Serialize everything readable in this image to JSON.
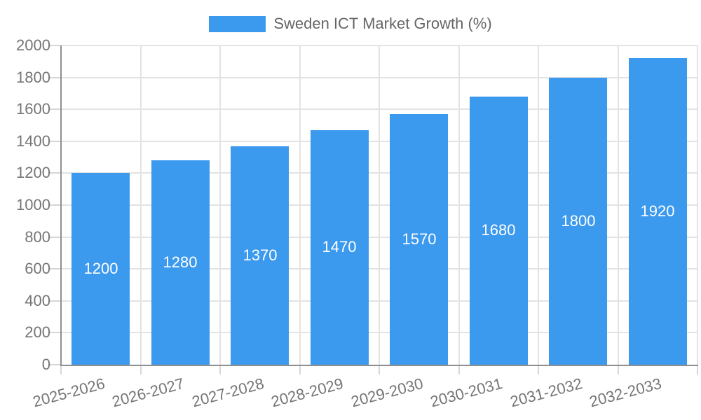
{
  "chart_data": {
    "type": "bar",
    "title": "",
    "legend": "Sweden ICT Market Growth (%)",
    "legend_position": "top",
    "categories": [
      "2025-2026",
      "2026-2027",
      "2027-2028",
      "2028-2029",
      "2029-2030",
      "2030-2031",
      "2031-2032",
      "2032-2033"
    ],
    "values": [
      1200,
      1280,
      1370,
      1470,
      1570,
      1680,
      1800,
      1920
    ],
    "value_labels": [
      "1200",
      "1280",
      "1370",
      "1470",
      "1570",
      "1680",
      "1800",
      "1920"
    ],
    "xlabel": "",
    "ylabel": "",
    "ylim": [
      0,
      2000
    ],
    "ytick_step": 200,
    "yticks": [
      0,
      200,
      400,
      600,
      800,
      1000,
      1200,
      1400,
      1600,
      1800,
      2000
    ],
    "grid": true,
    "x_label_rotation_deg": -15,
    "colors": {
      "bar": "#3B99EE",
      "value_label": "#ffffff",
      "grid": "#e3e3e3",
      "tick": "#d6d6d6",
      "axis": "#8f8f8f",
      "tick_label": "#757575",
      "legend_text": "#666666",
      "background": "#ffffff"
    }
  }
}
